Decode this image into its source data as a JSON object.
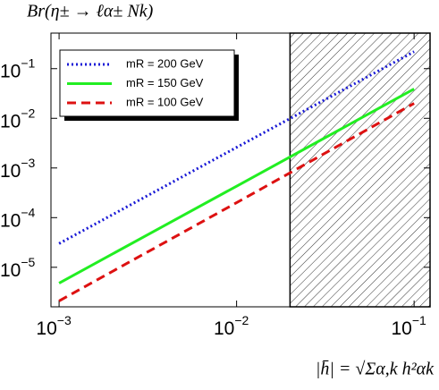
{
  "chart_data": {
    "type": "line",
    "title": "Br(η± → ℓα± Nk)",
    "x_label": "|h̄| = √Σα,k h²αk",
    "x": [
      0.001,
      0.01,
      0.1
    ],
    "series": [
      {
        "name": "mR = 200 GeV",
        "color": "#1a1ad6",
        "dash": "dotted",
        "values": [
          3e-05,
          0.0026,
          0.22
        ]
      },
      {
        "name": "mR = 150 GeV",
        "color": "#22ee22",
        "dash": "solid",
        "values": [
          4.8e-06,
          0.00043,
          0.039
        ]
      },
      {
        "name": "mR = 100 GeV",
        "color": "#dd1111",
        "dash": "dashed",
        "values": [
          2.1e-06,
          0.0002,
          0.02
        ]
      }
    ],
    "xscale": "log",
    "yscale": "log",
    "xlim": [
      0.0009,
      0.123
    ],
    "ylim": [
      1.6e-06,
      0.52
    ],
    "xticks": [
      {
        "value": 0.001,
        "label": "10",
        "exponent": "−3"
      },
      {
        "value": 0.01,
        "label": "10",
        "exponent": "−2"
      },
      {
        "value": 0.1,
        "label": "10",
        "exponent": "−1"
      }
    ],
    "yticks": [
      {
        "value": 0.1,
        "label": "10",
        "exponent": "−1"
      },
      {
        "value": 0.01,
        "label": "10",
        "exponent": "−2"
      },
      {
        "value": 0.001,
        "label": "10",
        "exponent": "−3"
      },
      {
        "value": 0.0001,
        "label": "10",
        "exponent": "−4"
      },
      {
        "value": 1e-05,
        "label": "10",
        "exponent": "−5"
      }
    ],
    "shaded_from": 0.02,
    "legend": "upper left"
  }
}
